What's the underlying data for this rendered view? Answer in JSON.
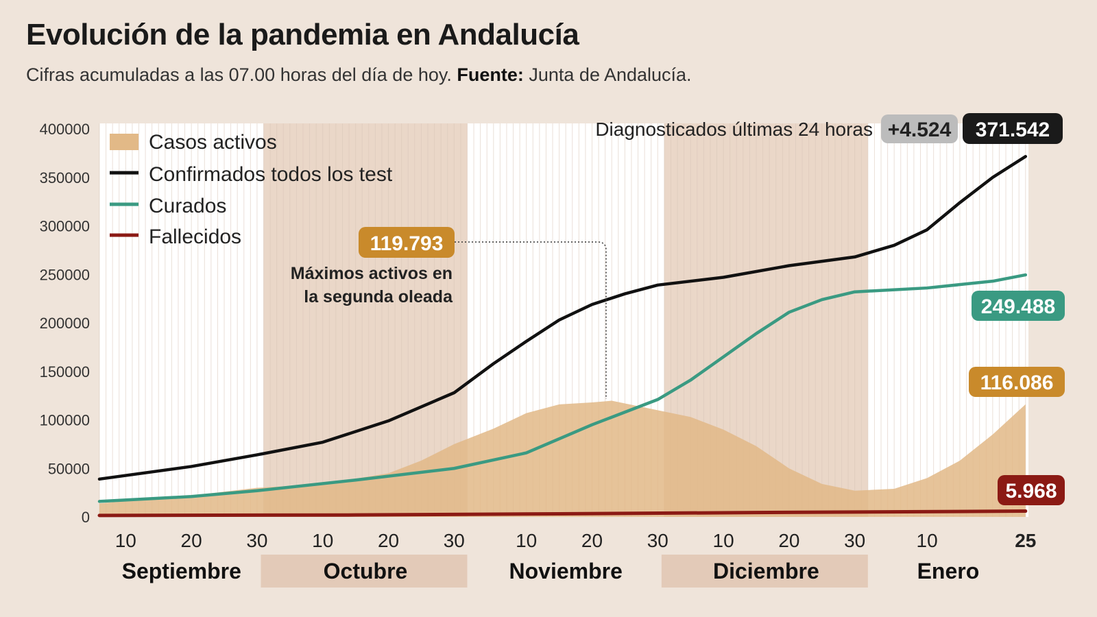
{
  "title": "Evolución de la pandemia en Andalucía",
  "subtitle_pre": "Cifras acumuladas a las 07.00 horas del día de hoy. ",
  "subtitle_bold": "Fuente:",
  "subtitle_post": " Junta de Andalucía.",
  "chart_data": {
    "type": "line",
    "ylim": [
      0,
      400000
    ],
    "yticks": [
      0,
      50000,
      100000,
      150000,
      200000,
      250000,
      300000,
      350000,
      400000
    ],
    "x_range": [
      "2020-09-06",
      "2021-01-25"
    ],
    "xticks": [
      {
        "date": "2020-09-10",
        "label": "10"
      },
      {
        "date": "2020-09-20",
        "label": "20"
      },
      {
        "date": "2020-09-30",
        "label": "30"
      },
      {
        "date": "2020-10-10",
        "label": "10"
      },
      {
        "date": "2020-10-20",
        "label": "20"
      },
      {
        "date": "2020-10-30",
        "label": "30"
      },
      {
        "date": "2020-11-10",
        "label": "10"
      },
      {
        "date": "2020-11-20",
        "label": "20"
      },
      {
        "date": "2020-11-30",
        "label": "30"
      },
      {
        "date": "2020-12-10",
        "label": "10"
      },
      {
        "date": "2020-12-20",
        "label": "20"
      },
      {
        "date": "2020-12-30",
        "label": "30"
      },
      {
        "date": "2021-01-10",
        "label": "10"
      },
      {
        "date": "2021-01-25",
        "label": "25"
      }
    ],
    "months": [
      {
        "label": "Septiembre",
        "start": "2020-09-06",
        "end": "2020-10-01",
        "shaded": false
      },
      {
        "label": "Octubre",
        "start": "2020-10-01",
        "end": "2020-11-01",
        "shaded": true
      },
      {
        "label": "Noviembre",
        "start": "2020-11-01",
        "end": "2020-12-01",
        "shaded": false
      },
      {
        "label": "Diciembre",
        "start": "2020-12-01",
        "end": "2021-01-01",
        "shaded": true
      },
      {
        "label": "Enero",
        "start": "2021-01-01",
        "end": "2021-01-26",
        "shaded": false
      }
    ],
    "series": [
      {
        "name": "Casos activos",
        "kind": "area",
        "color": "#e2b987",
        "points": [
          [
            "2020-09-06",
            14000
          ],
          [
            "2020-09-20",
            22000
          ],
          [
            "2020-09-30",
            30000
          ],
          [
            "2020-10-10",
            34000
          ],
          [
            "2020-10-20",
            45000
          ],
          [
            "2020-10-25",
            58000
          ],
          [
            "2020-10-30",
            75000
          ],
          [
            "2020-11-05",
            91000
          ],
          [
            "2020-11-10",
            107000
          ],
          [
            "2020-11-15",
            116000
          ],
          [
            "2020-11-20",
            118000
          ],
          [
            "2020-11-23",
            119793
          ],
          [
            "2020-11-30",
            110000
          ],
          [
            "2020-12-05",
            103000
          ],
          [
            "2020-12-10",
            90000
          ],
          [
            "2020-12-15",
            73000
          ],
          [
            "2020-12-20",
            50000
          ],
          [
            "2020-12-25",
            34000
          ],
          [
            "2020-12-30",
            27000
          ],
          [
            "2021-01-05",
            29000
          ],
          [
            "2021-01-10",
            40000
          ],
          [
            "2021-01-15",
            58000
          ],
          [
            "2021-01-20",
            85000
          ],
          [
            "2021-01-25",
            116086
          ]
        ]
      },
      {
        "name": "Confirmados todos los test",
        "kind": "line",
        "color": "#111111",
        "points": [
          [
            "2020-09-06",
            39000
          ],
          [
            "2020-09-20",
            52000
          ],
          [
            "2020-09-30",
            64000
          ],
          [
            "2020-10-10",
            77000
          ],
          [
            "2020-10-20",
            99000
          ],
          [
            "2020-10-30",
            128000
          ],
          [
            "2020-11-05",
            158000
          ],
          [
            "2020-11-10",
            181000
          ],
          [
            "2020-11-15",
            203000
          ],
          [
            "2020-11-20",
            219000
          ],
          [
            "2020-11-25",
            230000
          ],
          [
            "2020-11-30",
            239000
          ],
          [
            "2020-12-10",
            247000
          ],
          [
            "2020-12-20",
            259000
          ],
          [
            "2020-12-30",
            268000
          ],
          [
            "2021-01-05",
            280000
          ],
          [
            "2021-01-10",
            296000
          ],
          [
            "2021-01-15",
            324000
          ],
          [
            "2021-01-20",
            350000
          ],
          [
            "2021-01-25",
            371542
          ]
        ]
      },
      {
        "name": "Curados",
        "kind": "line",
        "color": "#3a9a82",
        "points": [
          [
            "2020-09-06",
            16000
          ],
          [
            "2020-09-20",
            21000
          ],
          [
            "2020-09-30",
            27000
          ],
          [
            "2020-10-15",
            38000
          ],
          [
            "2020-10-30",
            50000
          ],
          [
            "2020-11-10",
            66000
          ],
          [
            "2020-11-20",
            95000
          ],
          [
            "2020-11-30",
            121000
          ],
          [
            "2020-12-05",
            141000
          ],
          [
            "2020-12-10",
            165000
          ],
          [
            "2020-12-15",
            189000
          ],
          [
            "2020-12-20",
            211000
          ],
          [
            "2020-12-25",
            224000
          ],
          [
            "2020-12-30",
            232000
          ],
          [
            "2021-01-10",
            236000
          ],
          [
            "2021-01-20",
            243000
          ],
          [
            "2021-01-25",
            249488
          ]
        ]
      },
      {
        "name": "Fallecidos",
        "kind": "line",
        "color": "#8b1a14",
        "points": [
          [
            "2020-09-06",
            1500
          ],
          [
            "2020-10-15",
            2000
          ],
          [
            "2020-11-15",
            3200
          ],
          [
            "2020-12-15",
            4500
          ],
          [
            "2021-01-25",
            5968
          ]
        ]
      }
    ],
    "annotations": {
      "header_label": "Diagnosticados últimas 24 horas",
      "daily_new": "+4.524",
      "confirmed_total": "371.542",
      "curados_total": "249.488",
      "activos_total": "116.086",
      "fallecidos_total": "5.968",
      "peak_value": "119.793",
      "peak_date": "2020-11-23",
      "peak_text_1": "Máximos activos en",
      "peak_text_2": "la segunda oleada"
    }
  }
}
